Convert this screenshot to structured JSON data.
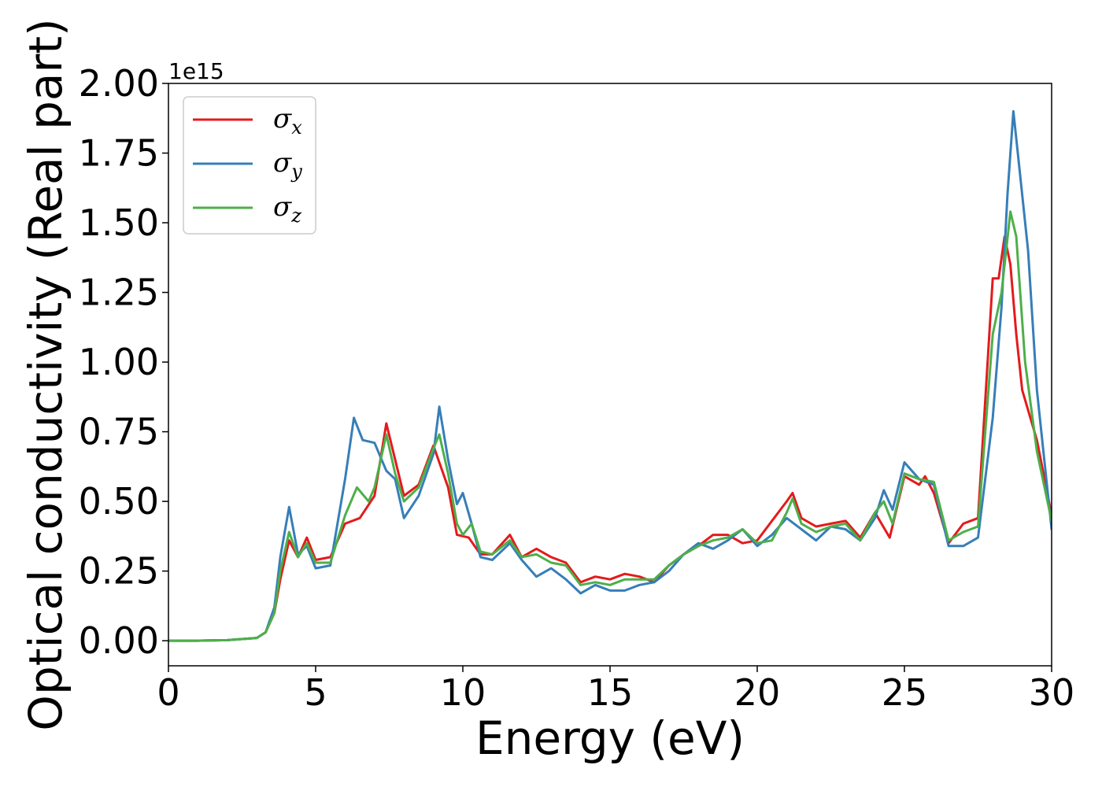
{
  "chart_data": {
    "type": "line",
    "xlabel": "Energy (eV)",
    "ylabel": "Optical conductivity (Real part)",
    "y_offset_label": "1e15",
    "xlim": [
      0,
      30
    ],
    "ylim": [
      -0.09,
      2.0
    ],
    "x_ticks": [
      0,
      5,
      10,
      15,
      20,
      25,
      30
    ],
    "x_tick_labels": [
      "0",
      "5",
      "10",
      "15",
      "20",
      "25",
      "30"
    ],
    "y_ticks": [
      0.0,
      0.25,
      0.5,
      0.75,
      1.0,
      1.25,
      1.5,
      1.75,
      2.0
    ],
    "y_tick_labels": [
      "0.00",
      "0.25",
      "0.50",
      "0.75",
      "1.00",
      "1.25",
      "1.50",
      "1.75",
      "2.00"
    ],
    "grid": false,
    "legend_position": "top-left",
    "legend": [
      {
        "base": "σ",
        "sub": "x",
        "color": "#e41a1c"
      },
      {
        "base": "σ",
        "sub": "y",
        "color": "#377eb8"
      },
      {
        "base": "σ",
        "sub": "z",
        "color": "#4daf4a"
      }
    ],
    "series": [
      {
        "name": "σx",
        "color": "#e41a1c",
        "x": [
          0,
          1,
          2,
          3,
          3.3,
          3.6,
          3.8,
          4.1,
          4.4,
          4.7,
          5.0,
          5.5,
          6.0,
          6.5,
          7.0,
          7.4,
          7.7,
          8.0,
          8.5,
          9.0,
          9.5,
          9.8,
          10.2,
          10.6,
          11.0,
          11.6,
          12.0,
          12.5,
          13.0,
          13.5,
          14.0,
          14.5,
          15.0,
          15.5,
          16.0,
          16.5,
          17.0,
          17.5,
          18.0,
          18.5,
          19.0,
          19.5,
          20.0,
          20.5,
          21.0,
          21.2,
          21.5,
          22.0,
          22.5,
          23.0,
          23.5,
          24.0,
          24.5,
          25.0,
          25.5,
          25.7,
          26.0,
          26.5,
          27.0,
          27.5,
          28.0,
          28.2,
          28.4,
          28.6,
          28.8,
          29.0,
          29.5,
          30.0
        ],
        "y": [
          0.0,
          0.0,
          0.002,
          0.01,
          0.03,
          0.1,
          0.22,
          0.36,
          0.3,
          0.37,
          0.29,
          0.3,
          0.42,
          0.44,
          0.52,
          0.78,
          0.65,
          0.52,
          0.56,
          0.7,
          0.55,
          0.38,
          0.37,
          0.31,
          0.31,
          0.38,
          0.3,
          0.33,
          0.3,
          0.28,
          0.21,
          0.23,
          0.22,
          0.24,
          0.23,
          0.21,
          0.27,
          0.31,
          0.34,
          0.38,
          0.38,
          0.35,
          0.36,
          0.43,
          0.5,
          0.53,
          0.44,
          0.41,
          0.42,
          0.43,
          0.37,
          0.46,
          0.37,
          0.59,
          0.56,
          0.59,
          0.53,
          0.35,
          0.42,
          0.44,
          1.3,
          1.3,
          1.45,
          1.35,
          1.1,
          0.9,
          0.72,
          0.45
        ]
      },
      {
        "name": "σy",
        "color": "#377eb8",
        "x": [
          0,
          1,
          2,
          3,
          3.3,
          3.6,
          3.8,
          4.1,
          4.4,
          4.7,
          5.0,
          5.5,
          6.0,
          6.3,
          6.6,
          7.0,
          7.4,
          7.7,
          8.0,
          8.5,
          9.0,
          9.2,
          9.5,
          9.8,
          10.0,
          10.3,
          10.6,
          11.0,
          11.6,
          12.0,
          12.5,
          13.0,
          13.5,
          14.0,
          14.5,
          15.0,
          15.5,
          16.0,
          16.5,
          17.0,
          17.5,
          18.0,
          18.5,
          19.0,
          19.5,
          20.0,
          20.5,
          21.0,
          21.5,
          22.0,
          22.5,
          23.0,
          23.5,
          24.0,
          24.3,
          24.6,
          25.0,
          25.5,
          26.0,
          26.5,
          27.0,
          27.5,
          28.0,
          28.3,
          28.5,
          28.7,
          28.9,
          29.2,
          29.5,
          30.0
        ],
        "y": [
          0.0,
          0.0,
          0.002,
          0.01,
          0.03,
          0.12,
          0.3,
          0.48,
          0.31,
          0.34,
          0.26,
          0.27,
          0.58,
          0.8,
          0.72,
          0.71,
          0.61,
          0.58,
          0.44,
          0.52,
          0.67,
          0.84,
          0.65,
          0.49,
          0.53,
          0.42,
          0.3,
          0.29,
          0.35,
          0.29,
          0.23,
          0.26,
          0.22,
          0.17,
          0.2,
          0.18,
          0.18,
          0.2,
          0.21,
          0.25,
          0.31,
          0.35,
          0.33,
          0.36,
          0.4,
          0.34,
          0.38,
          0.44,
          0.4,
          0.36,
          0.41,
          0.4,
          0.36,
          0.44,
          0.54,
          0.47,
          0.64,
          0.58,
          0.56,
          0.34,
          0.34,
          0.37,
          0.8,
          1.2,
          1.6,
          1.9,
          1.7,
          1.4,
          0.9,
          0.4
        ]
      },
      {
        "name": "σz",
        "color": "#4daf4a",
        "x": [
          0,
          1,
          2,
          3,
          3.3,
          3.6,
          3.8,
          4.1,
          4.4,
          4.7,
          5.0,
          5.5,
          6.0,
          6.4,
          6.8,
          7.0,
          7.4,
          7.7,
          8.0,
          8.5,
          9.0,
          9.2,
          9.5,
          9.8,
          10.0,
          10.3,
          10.6,
          11.0,
          11.6,
          12.0,
          12.5,
          13.0,
          13.5,
          14.0,
          14.5,
          15.0,
          15.5,
          16.0,
          16.5,
          17.0,
          17.5,
          18.0,
          18.5,
          19.0,
          19.5,
          20.0,
          20.5,
          21.0,
          21.2,
          21.5,
          22.0,
          22.5,
          23.0,
          23.5,
          24.0,
          24.3,
          24.6,
          25.0,
          25.5,
          26.0,
          26.5,
          27.0,
          27.5,
          28.0,
          28.3,
          28.6,
          28.8,
          29.1,
          29.5,
          30.0
        ],
        "y": [
          0.0,
          0.0,
          0.002,
          0.01,
          0.03,
          0.1,
          0.25,
          0.39,
          0.3,
          0.35,
          0.28,
          0.28,
          0.45,
          0.55,
          0.5,
          0.55,
          0.74,
          0.6,
          0.5,
          0.55,
          0.69,
          0.74,
          0.6,
          0.42,
          0.38,
          0.42,
          0.32,
          0.31,
          0.36,
          0.3,
          0.31,
          0.28,
          0.27,
          0.2,
          0.21,
          0.2,
          0.22,
          0.22,
          0.22,
          0.27,
          0.31,
          0.34,
          0.36,
          0.37,
          0.4,
          0.35,
          0.36,
          0.46,
          0.51,
          0.42,
          0.39,
          0.41,
          0.42,
          0.36,
          0.46,
          0.5,
          0.42,
          0.6,
          0.58,
          0.57,
          0.36,
          0.39,
          0.41,
          1.1,
          1.25,
          1.54,
          1.45,
          1.0,
          0.68,
          0.43
        ]
      }
    ]
  }
}
